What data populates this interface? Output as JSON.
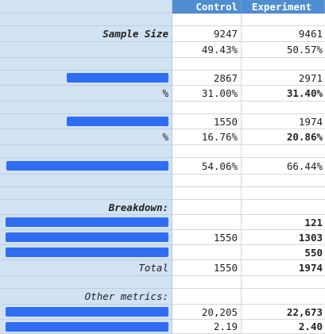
{
  "header": {
    "col_control": "Control",
    "col_experiment": "Experiment"
  },
  "rows": {
    "sample_size": {
      "label": "Sample Size",
      "control": "9247",
      "experiment": "9461"
    },
    "sample_pct": {
      "control": "49.43%",
      "experiment": "50.57%"
    },
    "metric1": {
      "control": "2867",
      "experiment": "2971"
    },
    "metric1_pct": {
      "label": "%",
      "control": "31.00%",
      "experiment": "31.40%"
    },
    "metric2": {
      "control": "1550",
      "experiment": "1974"
    },
    "metric2_pct": {
      "label": "%",
      "control": "16.76%",
      "experiment": "20.86%"
    },
    "metric3": {
      "control": "54.06%",
      "experiment": "66.44%"
    },
    "breakdown_title": {
      "label": "Breakdown:"
    },
    "breakdown1": {
      "experiment": "121"
    },
    "breakdown2": {
      "control": "1550",
      "experiment": "1303"
    },
    "breakdown3": {
      "experiment": "550"
    },
    "breakdown_total": {
      "label": "Total",
      "control": "1550",
      "experiment": "1974"
    },
    "other_title": {
      "label": "Other metrics:"
    },
    "other1": {
      "control": "20,205",
      "experiment": "22,673"
    },
    "other2": {
      "control": "2.19",
      "experiment": "2.40"
    }
  },
  "colors": {
    "label_column": "#d1e2f3",
    "header_blue": "#4f8ed1",
    "redaction": "#2f6df2"
  }
}
